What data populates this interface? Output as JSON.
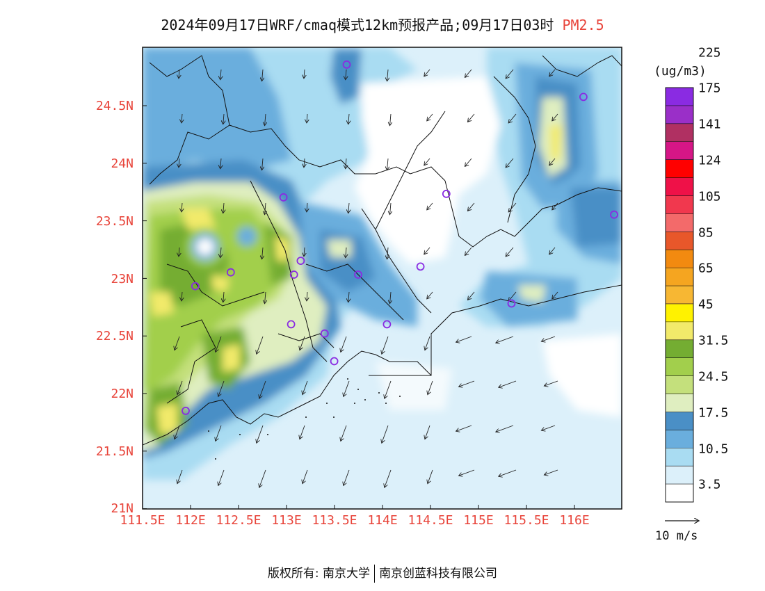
{
  "title": {
    "main": "2024年09月17日WRF/cmaq模式12km预报产品;09月17日03时",
    "species": "PM2.5"
  },
  "axes": {
    "y_ticks": [
      "24.5N",
      "24N",
      "23.5N",
      "23N",
      "22.5N",
      "22N",
      "21.5N",
      "21N"
    ],
    "x_ticks": [
      "111.5E",
      "112E",
      "112.5E",
      "113E",
      "113.5E",
      "114E",
      "114.5E",
      "115E",
      "115.5E",
      "116E"
    ],
    "lon_range": [
      111.5,
      116.5
    ],
    "lat_range": [
      21,
      25
    ]
  },
  "colorbar": {
    "unit": "(ug/m3)",
    "colors": [
      "#ffffff",
      "#dcf0fa",
      "#a9dcf2",
      "#6aaedd",
      "#4a8fc6",
      "#dfeec0",
      "#c4e07c",
      "#a2cf4c",
      "#74ad32",
      "#f2ea6a",
      "#fff200",
      "#f7b733",
      "#f5a520",
      "#f28a10",
      "#e8572a",
      "#f36a6a",
      "#f1384e",
      "#ef1148",
      "#ff0000",
      "#d61686",
      "#b03062",
      "#9a2fc8",
      "#8a2be2"
    ],
    "labels": [
      "3.5",
      "10.5",
      "17.5",
      "24.5",
      "31.5",
      "45",
      "65",
      "85",
      "105",
      "124",
      "141",
      "175",
      "225"
    ]
  },
  "vector_reference": {
    "label": "10 m/s"
  },
  "footer": {
    "left": "版权所有: 南京大学",
    "right": "南京创蓝科技有限公司"
  },
  "stations": [
    {
      "lon": 113.63,
      "lat": 24.85
    },
    {
      "lon": 116.1,
      "lat": 24.57
    },
    {
      "lon": 112.97,
      "lat": 23.7
    },
    {
      "lon": 114.67,
      "lat": 23.73
    },
    {
      "lon": 116.42,
      "lat": 23.55
    },
    {
      "lon": 113.15,
      "lat": 23.15
    },
    {
      "lon": 112.42,
      "lat": 23.05
    },
    {
      "lon": 113.08,
      "lat": 23.03
    },
    {
      "lon": 113.75,
      "lat": 23.03
    },
    {
      "lon": 114.4,
      "lat": 23.1
    },
    {
      "lon": 112.05,
      "lat": 22.93
    },
    {
      "lon": 115.35,
      "lat": 22.78
    },
    {
      "lon": 113.05,
      "lat": 22.6
    },
    {
      "lon": 113.4,
      "lat": 22.52
    },
    {
      "lon": 114.05,
      "lat": 22.6
    },
    {
      "lon": 113.5,
      "lat": 22.28
    },
    {
      "lon": 111.95,
      "lat": 21.85
    }
  ]
}
